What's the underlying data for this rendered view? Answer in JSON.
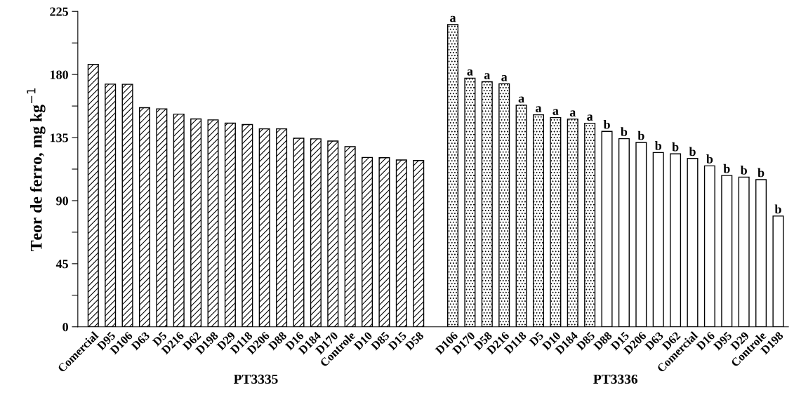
{
  "chart_data": {
    "type": "bar",
    "ylabel": "Teor de ferro, mg kg$^{−1}$",
    "categories": [
      "Comercial",
      "D95",
      "D106",
      "D63",
      "D5",
      "D216",
      "D62",
      "D198",
      "D29",
      "D118",
      "D206",
      "D88",
      "D16",
      "D184",
      "D170",
      "Controle",
      "D10",
      "D85",
      "D15",
      "D58",
      null,
      "D106",
      "D170",
      "D58",
      "D216",
      "D118",
      "D5",
      "D10",
      "D184",
      "D85",
      "D88",
      "D15",
      "D206",
      "D63",
      "D62",
      "Comercial",
      "D16",
      "D95",
      "D29",
      "Controle",
      "D198"
    ],
    "series": [
      {
        "color": "#000000",
        "values": [
          187.2,
          173.1,
          173,
          156.3,
          155.5,
          151.7,
          148.3,
          147.6,
          145.3,
          144.3,
          141.2,
          141.2,
          134.5,
          134.1,
          132.5,
          128.5,
          120.8,
          120.6,
          119,
          118.6,
          null,
          null,
          null,
          null,
          null,
          null,
          null,
          null,
          null,
          null,
          null,
          null,
          null,
          null,
          null,
          null,
          null,
          null,
          null,
          null,
          null
        ]
      },
      {
        "color": "#000000",
        "values": [
          null,
          null,
          null,
          null,
          null,
          null,
          null,
          null,
          null,
          null,
          null,
          null,
          null,
          null,
          null,
          null,
          null,
          null,
          null,
          null,
          null,
          215.6,
          177.4,
          174.8,
          173.4,
          158.1,
          151.2,
          149.2,
          148.2,
          145.2,
          null,
          null,
          null,
          null,
          null,
          null,
          null,
          null,
          null,
          null,
          null
        ],
        "value_labels": [
          null,
          null,
          null,
          null,
          null,
          null,
          null,
          null,
          null,
          null,
          null,
          null,
          null,
          null,
          null,
          null,
          null,
          null,
          null,
          null,
          null,
          "a",
          "a",
          "a",
          "a",
          "a",
          "a",
          "a",
          "a",
          "a",
          null,
          null,
          null,
          null,
          null,
          null,
          null,
          null,
          null,
          null,
          null
        ]
      },
      {
        "color": "#ffffff",
        "values": [
          null,
          null,
          null,
          null,
          null,
          null,
          null,
          null,
          null,
          null,
          null,
          null,
          null,
          null,
          null,
          null,
          null,
          null,
          null,
          null,
          null,
          null,
          null,
          null,
          null,
          null,
          null,
          null,
          null,
          null,
          139.4,
          134.2,
          131.5,
          124.3,
          123.4,
          120.1,
          114.8,
          107.9,
          106.8,
          105,
          79
        ],
        "value_labels": [
          null,
          null,
          null,
          null,
          null,
          null,
          null,
          null,
          null,
          null,
          null,
          null,
          null,
          null,
          null,
          null,
          null,
          null,
          null,
          null,
          null,
          null,
          null,
          null,
          null,
          null,
          null,
          null,
          null,
          null,
          "b",
          "b",
          "b",
          "b",
          "b",
          "b",
          "b",
          "b",
          "b",
          "b",
          "b"
        ]
      }
    ],
    "ylim": [
      0,
      225
    ],
    "yticks": [
      0,
      {
        "value": 22.5,
        "label": null
      },
      45,
      {
        "value": 67.5,
        "label": null
      },
      90,
      {
        "value": 112.5,
        "label": null
      },
      135,
      {
        "value": 157.5,
        "label": null
      },
      180,
      {
        "value": 202.5,
        "label": null
      },
      225
    ],
    "annotations": [
      "PT3335",
      "PT3336"
    ],
    "grid": false,
    "legend": false
  }
}
